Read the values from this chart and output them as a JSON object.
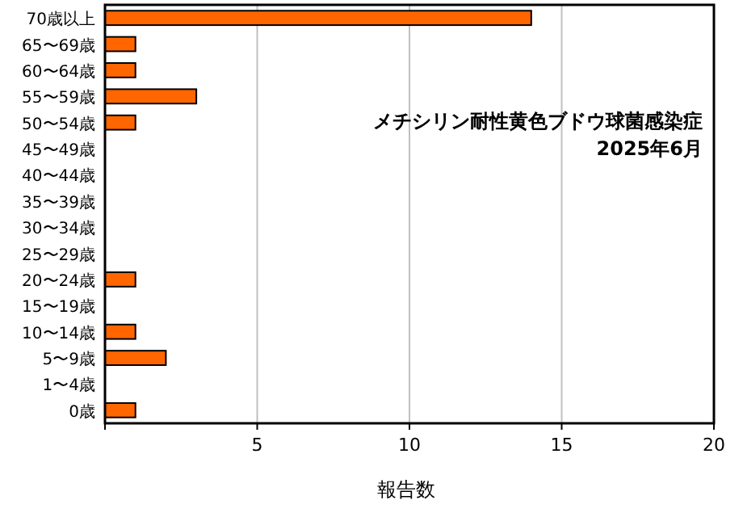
{
  "chart_data": {
    "type": "bar",
    "orientation": "horizontal",
    "title": "メチシリン耐性黄色ブドウ球菌感染症",
    "subtitle": "2025年6月",
    "xlabel": "報告数",
    "categories": [
      "70歳以上",
      "65〜69歳",
      "60〜64歳",
      "55〜59歳",
      "50〜54歳",
      "45〜49歳",
      "40〜44歳",
      "35〜39歳",
      "30〜34歳",
      "25〜29歳",
      "20〜24歳",
      "15〜19歳",
      "10〜14歳",
      "5〜9歳",
      "1〜4歳",
      "0歳"
    ],
    "values": [
      14,
      1,
      1,
      3,
      1,
      0,
      0,
      0,
      0,
      0,
      1,
      0,
      1,
      2,
      0,
      1
    ],
    "color": "#ff6600",
    "xlim": [
      0,
      20
    ],
    "xticks": [
      {
        "value": 0,
        "label": null
      },
      5,
      10,
      15,
      20
    ],
    "grid": "x"
  }
}
